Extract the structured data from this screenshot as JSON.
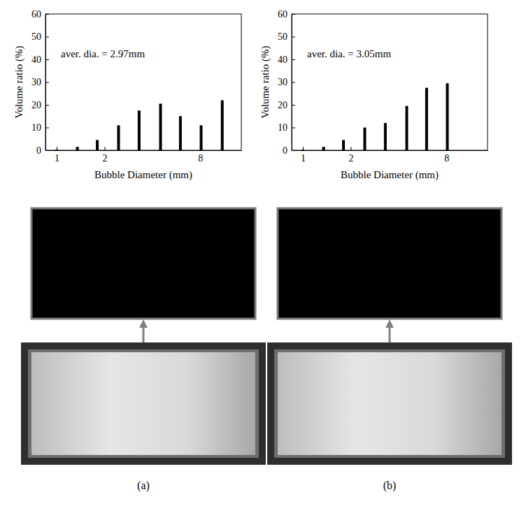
{
  "chart_data": [
    {
      "type": "bar",
      "label": "(a)",
      "annotation": "aver. dia. = 2.97mm",
      "x_label": "Bubble Diameter (mm)",
      "y_label": "Volume ratio (%)",
      "x": [
        1.0,
        1.35,
        1.8,
        2.45,
        3.3,
        4.5,
        6.0,
        8.1,
        11.0
      ],
      "values": [
        0.3,
        1.5,
        4.5,
        11,
        17.5,
        20.5,
        15,
        11,
        22
      ],
      "color": "#000000",
      "log": "x",
      "xlim": [
        0.85,
        14.5
      ],
      "xticks": [
        1,
        2,
        8
      ],
      "ylim": [
        0,
        60
      ],
      "yticks": [
        0,
        10,
        20,
        30,
        40,
        50,
        60
      ]
    },
    {
      "type": "bar",
      "label": "(b)",
      "annotation": "aver. dia. = 3.05mm",
      "x_label": "Bubble Diameter (mm)",
      "y_label": "Volume ratio (%)",
      "x": [
        1.0,
        1.35,
        1.8,
        2.45,
        3.3,
        4.5,
        6.0,
        8.1
      ],
      "values": [
        0.3,
        1.5,
        4.5,
        10,
        12,
        19.5,
        27.5,
        29.5
      ],
      "color": "#000000",
      "log": "x",
      "xlim": [
        0.85,
        14.5
      ],
      "xticks": [
        1,
        2,
        8
      ],
      "ylim": [
        0,
        60
      ],
      "yticks": [
        0,
        10,
        20,
        30,
        40,
        50,
        60
      ]
    }
  ]
}
